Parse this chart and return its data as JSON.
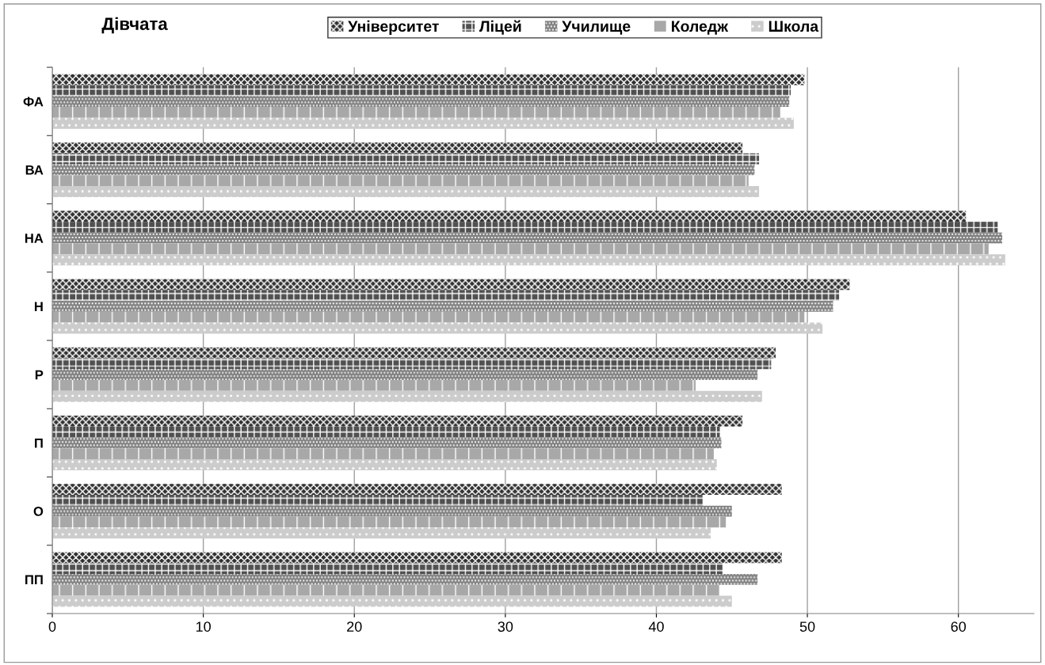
{
  "chart_data": {
    "type": "bar",
    "orientation": "horizontal",
    "title": "Дівчата",
    "categories": [
      "ФА",
      "ВА",
      "НА",
      "Н",
      "Р",
      "П",
      "О",
      "ПП"
    ],
    "series": [
      {
        "name": "Університет",
        "color": "#303030",
        "values": [
          49.8,
          45.7,
          60.5,
          52.8,
          47.9,
          45.7,
          48.3,
          48.3
        ]
      },
      {
        "name": "Ліцей",
        "color": "#505050",
        "values": [
          48.9,
          46.8,
          62.6,
          52.1,
          47.6,
          44.2,
          43.1,
          44.4
        ]
      },
      {
        "name": "Училище",
        "color": "#808080",
        "values": [
          48.8,
          46.5,
          62.9,
          51.7,
          46.7,
          44.3,
          45.0,
          46.7
        ]
      },
      {
        "name": "Коледж",
        "color": "#a8a8a8",
        "values": [
          48.2,
          46.1,
          62.0,
          49.8,
          42.6,
          43.8,
          44.6,
          44.2
        ]
      },
      {
        "name": "Школа",
        "color": "#cccccc",
        "values": [
          49.1,
          46.8,
          63.1,
          51.0,
          47.0,
          44.0,
          43.6,
          45.0
        ]
      }
    ],
    "xlim": [
      0,
      65
    ],
    "xticks": [
      0,
      10,
      20,
      30,
      40,
      50,
      60
    ],
    "grid": "x",
    "legend": "top"
  }
}
